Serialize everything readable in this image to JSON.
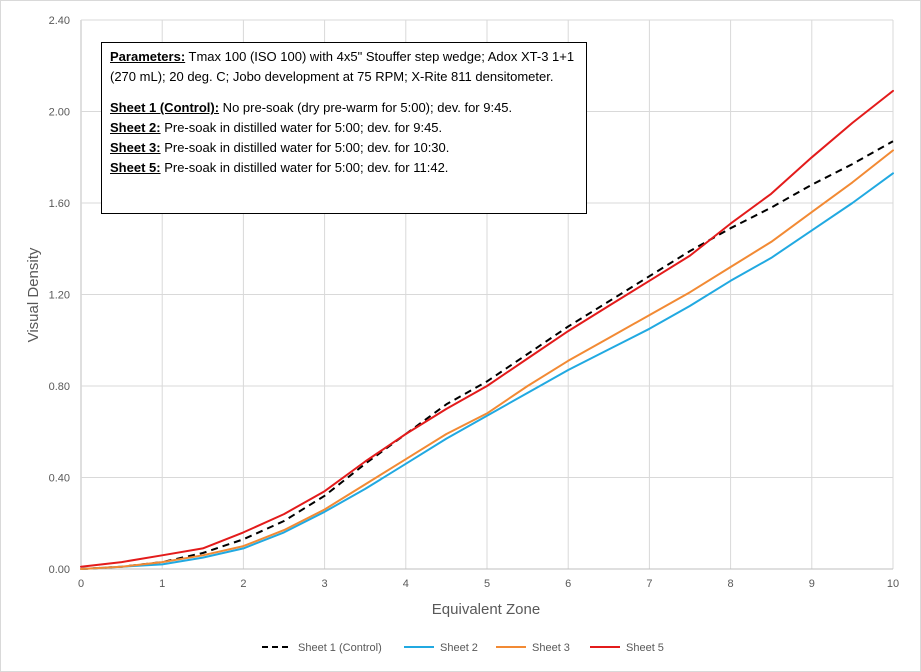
{
  "chart_data": {
    "type": "line",
    "xlabel": "Equivalent Zone",
    "ylabel": "Visual Density",
    "xlim": [
      0,
      10
    ],
    "ylim": [
      0,
      2.4
    ],
    "x_ticks": [
      "0",
      "1",
      "2",
      "3",
      "4",
      "5",
      "6",
      "7",
      "8",
      "9",
      "10"
    ],
    "y_ticks": [
      "0.00",
      "0.40",
      "0.80",
      "1.20",
      "1.60",
      "2.00",
      "2.40"
    ],
    "grid": "vertical and horizontal",
    "legend_position": "bottom",
    "x": [
      0,
      0.5,
      1,
      1.5,
      2,
      2.5,
      3,
      3.5,
      4,
      4.5,
      5,
      5.5,
      6,
      6.5,
      7,
      7.5,
      8,
      8.5,
      9,
      9.5,
      10
    ],
    "series": [
      {
        "name": "Sheet 1 (Control)",
        "color": "#000000",
        "dash": "dashed",
        "values": [
          0.0,
          0.01,
          0.03,
          0.07,
          0.13,
          0.21,
          0.32,
          0.46,
          0.59,
          0.72,
          0.82,
          0.94,
          1.06,
          1.17,
          1.28,
          1.39,
          1.49,
          1.58,
          1.68,
          1.77,
          1.87
        ]
      },
      {
        "name": "Sheet 2",
        "color": "#21A9E1",
        "dash": "solid",
        "values": [
          0.0,
          0.01,
          0.02,
          0.05,
          0.09,
          0.16,
          0.25,
          0.35,
          0.46,
          0.57,
          0.67,
          0.77,
          0.87,
          0.96,
          1.05,
          1.15,
          1.26,
          1.36,
          1.48,
          1.6,
          1.73
        ]
      },
      {
        "name": "Sheet 3",
        "color": "#F28A34",
        "dash": "solid",
        "values": [
          0.0,
          0.01,
          0.03,
          0.06,
          0.1,
          0.17,
          0.26,
          0.37,
          0.48,
          0.59,
          0.68,
          0.8,
          0.91,
          1.01,
          1.11,
          1.21,
          1.32,
          1.43,
          1.56,
          1.69,
          1.83
        ]
      },
      {
        "name": "Sheet 5",
        "color": "#E31B1B",
        "dash": "solid",
        "values": [
          0.01,
          0.03,
          0.06,
          0.09,
          0.16,
          0.24,
          0.34,
          0.47,
          0.59,
          0.7,
          0.8,
          0.92,
          1.04,
          1.15,
          1.26,
          1.37,
          1.51,
          1.64,
          1.8,
          1.95,
          2.09
        ]
      }
    ]
  },
  "notes": {
    "params_label": "Parameters:",
    "params_text": " Tmax 100 (ISO 100) with 4x5\" Stouffer step wedge; Adox XT-3 1+1 (270 mL); 20 deg. C; Jobo development  at 75 RPM; X-Rite 811 densitometer.",
    "sheet1_label": "Sheet 1 (Control):",
    "sheet1_text": " No pre-soak (dry pre-warm for 5:00); dev. for 9:45.",
    "sheet2_label": "Sheet 2:",
    "sheet2_text": " Pre-soak in distilled water for 5:00; dev. for 9:45.",
    "sheet3_label": "Sheet 3:",
    "sheet3_text": " Pre-soak in distilled water for 5:00; dev. for 10:30.",
    "sheet5_label": "Sheet 5:",
    "sheet5_text": " Pre-soak in distilled water for 5:00; dev. for 11:42."
  }
}
